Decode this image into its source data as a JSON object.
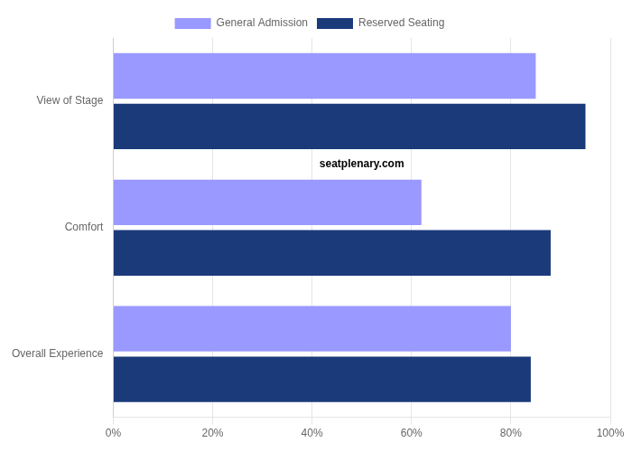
{
  "chart_data": {
    "type": "bar",
    "orientation": "horizontal",
    "categories": [
      "View of Stage",
      "Comfort",
      "Overall Experience"
    ],
    "series": [
      {
        "name": "General Admission",
        "color": "#9999ff",
        "values": [
          0.85,
          0.62,
          0.8
        ]
      },
      {
        "name": "Reserved Seating",
        "color": "#1a3a7a",
        "values": [
          0.95,
          0.88,
          0.84
        ]
      }
    ],
    "xlim": [
      0,
      1.0
    ],
    "xticks": [
      {
        "value": 0,
        "label": "0%"
      },
      {
        "value": 0.2,
        "label": "20%"
      },
      {
        "value": 0.4,
        "label": "40%"
      },
      {
        "value": 0.6,
        "label": "60%"
      },
      {
        "value": 0.8,
        "label": "80%"
      },
      {
        "value": 1.0,
        "label": "100%"
      }
    ],
    "grid": true,
    "legend": "top",
    "annotations": [
      "seatplenary.com"
    ]
  }
}
